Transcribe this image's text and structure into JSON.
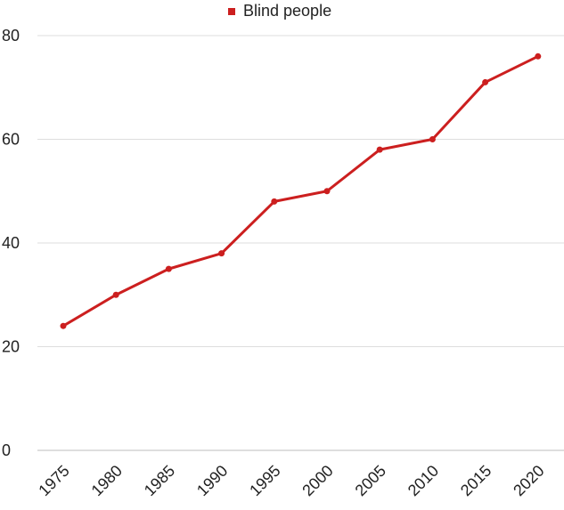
{
  "chart_data": {
    "type": "line",
    "title": "",
    "xlabel": "",
    "ylabel": "",
    "categories": [
      "1975",
      "1980",
      "1985",
      "1990",
      "1995",
      "2000",
      "2005",
      "2010",
      "2015",
      "2020"
    ],
    "series": [
      {
        "name": "Blind people",
        "values": [
          24,
          30,
          35,
          38,
          48,
          50,
          58,
          60,
          71,
          76
        ],
        "color": "#cc1f1f"
      }
    ],
    "ylim": [
      0,
      80
    ],
    "yticks": [
      "0",
      "20",
      "40",
      "60",
      "80"
    ],
    "grid": "horizontal",
    "legend": "top-center"
  }
}
